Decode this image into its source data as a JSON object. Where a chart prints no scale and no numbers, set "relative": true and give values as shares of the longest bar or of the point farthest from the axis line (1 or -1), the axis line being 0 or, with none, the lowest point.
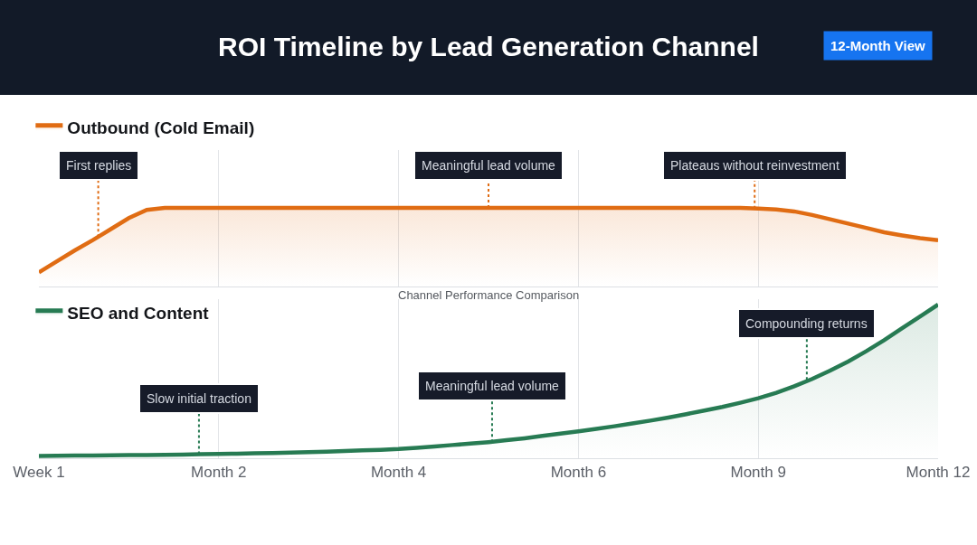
{
  "chart_data": [
    {
      "type": "area",
      "title": "ROI Timeline by Lead Generation Channel",
      "annotations": [
        "12-Month View",
        "Channel Performance Comparison",
        {
          "text": "First replies",
          "y": 0.63
        },
        {
          "text": "Meaningful lead volume",
          "y": 1
        },
        {
          "text": "Plateaus without reinvestment",
          "y": 0.99
        }
      ],
      "relative": true,
      "categories": [
        "Week 1",
        null,
        null,
        null,
        null,
        null,
        null,
        null,
        null,
        null,
        "Month 2",
        null,
        null,
        null,
        null,
        null,
        null,
        null,
        null,
        null,
        "Month 4",
        null,
        null,
        null,
        null,
        null,
        null,
        null,
        null,
        null,
        "Month 6",
        null,
        null,
        null,
        null,
        null,
        null,
        null,
        null,
        null,
        "Month 9",
        null,
        null,
        null,
        null,
        null,
        null,
        null,
        null,
        null,
        "Month 12"
      ],
      "series": [
        {
          "name": "Outbound (Cold Email)",
          "color": "#e06c13",
          "values": [
            0.18,
            0.32,
            0.46,
            0.59,
            0.73,
            0.87,
            0.975,
            1,
            1,
            1,
            1,
            1,
            1,
            1,
            1,
            1,
            1,
            1,
            1,
            1,
            1,
            1,
            1,
            1,
            1,
            1,
            1,
            1,
            1,
            1,
            1,
            1,
            1,
            1,
            1,
            1,
            1,
            1,
            1,
            1,
            0.99,
            0.98,
            0.955,
            0.91,
            0.855,
            0.8,
            0.745,
            0.69,
            0.65,
            0.615,
            0.59
          ]
        }
      ],
      "tick_labels": false,
      "grid": "x",
      "legend": "top left"
    },
    {
      "type": "area",
      "annotations": [
        {
          "text": "Slow initial traction",
          "y": 0.026
        },
        {
          "text": "Meaningful lead volume",
          "y": 0.105
        },
        {
          "text": "Compounding returns",
          "y": 0.51
        }
      ],
      "relative": true,
      "categories": [
        "Week 1",
        null,
        null,
        null,
        null,
        null,
        null,
        null,
        null,
        null,
        "Month 2",
        null,
        null,
        null,
        null,
        null,
        null,
        null,
        null,
        null,
        "Month 4",
        null,
        null,
        null,
        null,
        null,
        null,
        null,
        null,
        null,
        "Month 6",
        null,
        null,
        null,
        null,
        null,
        null,
        null,
        null,
        null,
        "Month 9",
        null,
        null,
        null,
        null,
        null,
        null,
        null,
        null,
        null,
        "Month 12"
      ],
      "series": [
        {
          "name": "SEO and Content",
          "color": "#277b53",
          "values": [
            0.015,
            0.016,
            0.017,
            0.018,
            0.019,
            0.02,
            0.021,
            0.022,
            0.024,
            0.026,
            0.028,
            0.03,
            0.032,
            0.034,
            0.037,
            0.04,
            0.043,
            0.047,
            0.051,
            0.055,
            0.06,
            0.068,
            0.077,
            0.086,
            0.095,
            0.105,
            0.117,
            0.13,
            0.145,
            0.16,
            0.175,
            0.191,
            0.208,
            0.226,
            0.245,
            0.265,
            0.287,
            0.31,
            0.334,
            0.361,
            0.39,
            0.426,
            0.468,
            0.516,
            0.57,
            0.63,
            0.696,
            0.768,
            0.846,
            0.923,
            1
          ]
        }
      ],
      "tick_labels": "x",
      "grid": "x",
      "legend": "top left"
    }
  ]
}
